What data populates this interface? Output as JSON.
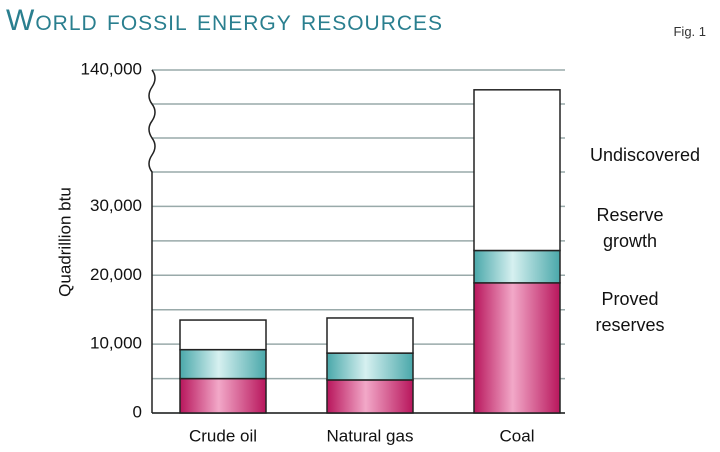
{
  "chart_data": {
    "type": "stacked_bar",
    "title": "World fossil energy resources",
    "subtitle": "Fig. 1",
    "y_label": "Quadrillion btu",
    "categories": [
      "Crude oil",
      "Natural gas",
      "Coal"
    ],
    "series": [
      {
        "name": "Proved reserves",
        "color": "#c8286e",
        "values": [
          5000,
          4800,
          18900
        ]
      },
      {
        "name": "Reserve growth",
        "color": "#6cc0c0",
        "values": [
          4200,
          3900,
          4700
        ]
      },
      {
        "name": "Undiscovered",
        "color": "#ffffff",
        "values": [
          4300,
          5100,
          96000
        ]
      }
    ],
    "ylim": [
      0,
      140000
    ],
    "y_break": 35000,
    "yticks": [
      0,
      {
        "value": 10000,
        "label": "10,000"
      },
      {
        "value": 20000,
        "label": "20,000"
      },
      {
        "value": 30000,
        "label": "30,000"
      },
      {
        "value": 140000,
        "label": "140,000"
      }
    ],
    "minor_yticks": [
      5000,
      15000,
      25000,
      35000,
      70000,
      105000
    ],
    "grid": true
  }
}
